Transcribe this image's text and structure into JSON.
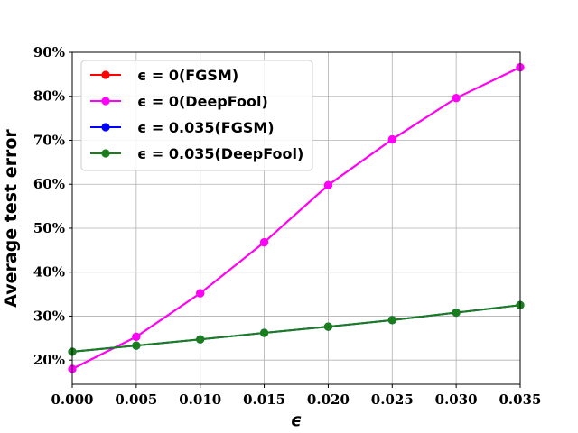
{
  "chart_data": {
    "type": "line",
    "title": "",
    "xlabel": "ϵ",
    "ylabel": "Average test error",
    "xlim": [
      0.0,
      0.035
    ],
    "ylim": [
      0.145,
      0.9
    ],
    "x": [
      0.0,
      0.005,
      0.01,
      0.015,
      0.02,
      0.025,
      0.03,
      0.035
    ],
    "x_tick_labels": [
      "0.000",
      "0.005",
      "0.010",
      "0.015",
      "0.020",
      "0.025",
      "0.030",
      "0.035"
    ],
    "y_ticks": [
      0.2,
      0.3,
      0.4,
      0.5,
      0.6,
      0.7,
      0.8,
      0.9
    ],
    "y_tick_labels": [
      "20%",
      "30%",
      "40%",
      "50%",
      "60%",
      "70%",
      "80%",
      "90%"
    ],
    "grid": true,
    "legend_position": "top-left",
    "series": [
      {
        "name": "ϵ = 0(FGSM)",
        "color": "#ff0000",
        "values": [
          0.18,
          0.253,
          0.352,
          0.468,
          0.598,
          0.702,
          0.796,
          0.866
        ]
      },
      {
        "name": "ϵ = 0(DeepFool)",
        "color": "#ff00ff",
        "values": [
          0.18,
          0.253,
          0.352,
          0.468,
          0.598,
          0.702,
          0.796,
          0.866
        ]
      },
      {
        "name": "ϵ = 0.035(FGSM)",
        "color": "#0000ff",
        "values": [
          0.219,
          0.233,
          0.247,
          0.262,
          0.276,
          0.291,
          0.308,
          0.325
        ]
      },
      {
        "name": "ϵ = 0.035(DeepFool)",
        "color": "#1a7f1a",
        "values": [
          0.219,
          0.233,
          0.247,
          0.262,
          0.276,
          0.291,
          0.308,
          0.325
        ]
      }
    ]
  }
}
